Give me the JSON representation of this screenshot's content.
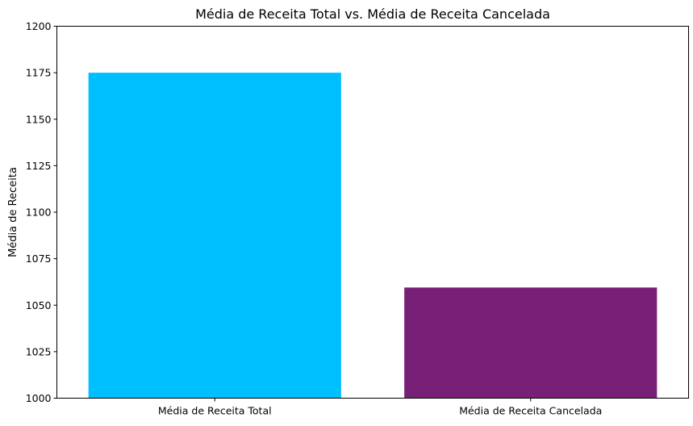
{
  "chart_data": {
    "type": "bar",
    "title": "Média de Receita Total vs. Média de Receita Cancelada",
    "xlabel": "",
    "ylabel": "Média de Receita",
    "categories": [
      "Média de Receita Total",
      "Média de Receita Cancelada"
    ],
    "values": [
      1175,
      1059.5
    ],
    "colors": [
      "#00bfff",
      "#781f78"
    ],
    "ylim": [
      1000,
      1200
    ],
    "yticks": [
      1000,
      1025,
      1050,
      1075,
      1100,
      1125,
      1150,
      1175,
      1200
    ],
    "grid": false,
    "legend": "none"
  }
}
